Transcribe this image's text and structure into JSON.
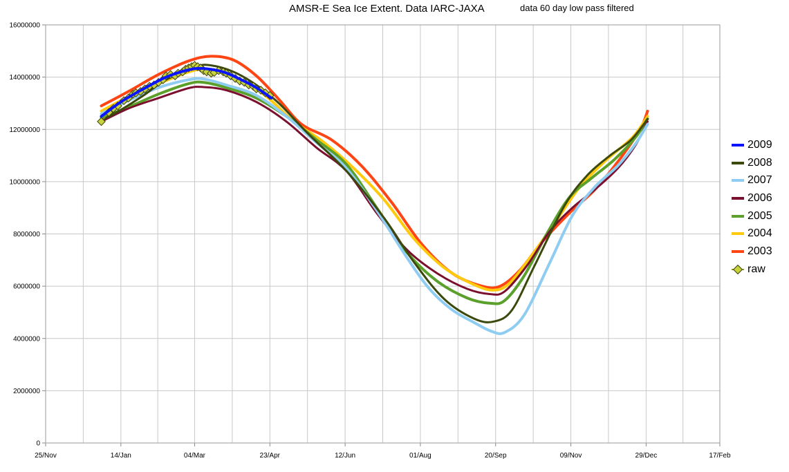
{
  "title": "AMSR-E Sea Ice Extent. Data IARC-JAXA",
  "subtitle": "data 60 day low pass filtered",
  "chart_data": {
    "type": "line",
    "title": "AMSR-E Sea Ice Extent. Data IARC-JAXA",
    "subtitle": "data 60 day low pass filtered",
    "xlabel": "",
    "ylabel": "",
    "x_range_days": [
      0,
      448
    ],
    "ylim": [
      0,
      16000000
    ],
    "grid": true,
    "legend_position": "right",
    "x_ticks": [
      {
        "day": 0,
        "label": "25/Nov"
      },
      {
        "day": 50,
        "label": "14/Jan"
      },
      {
        "day": 99,
        "label": "04/Mar"
      },
      {
        "day": 149,
        "label": "23/Apr"
      },
      {
        "day": 199,
        "label": "12/Jun"
      },
      {
        "day": 249,
        "label": "01/Aug"
      },
      {
        "day": 299,
        "label": "20/Sep"
      },
      {
        "day": 349,
        "label": "09/Nov"
      },
      {
        "day": 399,
        "label": "29/Dec"
      },
      {
        "day": 448,
        "label": "17/Feb"
      }
    ],
    "y_ticks": [
      "0",
      "2000000",
      "4000000",
      "6000000",
      "8000000",
      "10000000",
      "12000000",
      "14000000",
      "16000000"
    ],
    "y_tick_values": [
      0,
      2000000,
      4000000,
      6000000,
      8000000,
      10000000,
      12000000,
      14000000,
      16000000
    ],
    "series": [
      {
        "name": "2009",
        "color": "#0a14ff",
        "width": 4,
        "points": [
          [
            37,
            12500000
          ],
          [
            50,
            13050000
          ],
          [
            65,
            13550000
          ],
          [
            80,
            14000000
          ],
          [
            95,
            14280000
          ],
          [
            105,
            14330000
          ],
          [
            118,
            14200000
          ],
          [
            130,
            13900000
          ],
          [
            140,
            13600000
          ],
          [
            150,
            13200000
          ]
        ]
      },
      {
        "name": "2008",
        "color": "#3b4a0c",
        "width": 3,
        "points": [
          [
            37,
            12350000
          ],
          [
            50,
            12750000
          ],
          [
            65,
            13300000
          ],
          [
            80,
            13900000
          ],
          [
            100,
            14400000
          ],
          [
            110,
            14450000
          ],
          [
            125,
            14200000
          ],
          [
            140,
            13700000
          ],
          [
            155,
            13000000
          ],
          [
            175,
            11800000
          ],
          [
            200,
            10400000
          ],
          [
            225,
            8600000
          ],
          [
            245,
            6900000
          ],
          [
            265,
            5500000
          ],
          [
            285,
            4750000
          ],
          [
            298,
            4650000
          ],
          [
            310,
            5100000
          ],
          [
            325,
            6800000
          ],
          [
            345,
            9100000
          ],
          [
            360,
            10250000
          ],
          [
            375,
            11000000
          ],
          [
            389,
            11600000
          ],
          [
            400,
            12400000
          ]
        ]
      },
      {
        "name": "2007",
        "color": "#8fccf2",
        "width": 4,
        "points": [
          [
            37,
            12600000
          ],
          [
            55,
            13100000
          ],
          [
            75,
            13600000
          ],
          [
            95,
            13900000
          ],
          [
            105,
            13930000
          ],
          [
            120,
            13700000
          ],
          [
            140,
            13300000
          ],
          [
            160,
            12500000
          ],
          [
            180,
            11500000
          ],
          [
            200,
            10500000
          ],
          [
            220,
            8900000
          ],
          [
            240,
            7100000
          ],
          [
            255,
            5900000
          ],
          [
            270,
            5100000
          ],
          [
            285,
            4600000
          ],
          [
            296,
            4280000
          ],
          [
            305,
            4230000
          ],
          [
            318,
            4900000
          ],
          [
            335,
            6900000
          ],
          [
            350,
            8700000
          ],
          [
            365,
            9800000
          ],
          [
            380,
            10600000
          ],
          [
            392,
            11450000
          ],
          [
            400,
            12200000
          ]
        ]
      },
      {
        "name": "2006",
        "color": "#7a0f2e",
        "width": 3,
        "points": [
          [
            37,
            12300000
          ],
          [
            55,
            12800000
          ],
          [
            75,
            13200000
          ],
          [
            95,
            13580000
          ],
          [
            105,
            13620000
          ],
          [
            120,
            13500000
          ],
          [
            140,
            13050000
          ],
          [
            160,
            12300000
          ],
          [
            180,
            11300000
          ],
          [
            200,
            10400000
          ],
          [
            220,
            8800000
          ],
          [
            240,
            7400000
          ],
          [
            260,
            6500000
          ],
          [
            280,
            5900000
          ],
          [
            295,
            5700000
          ],
          [
            305,
            5800000
          ],
          [
            320,
            6800000
          ],
          [
            335,
            8100000
          ],
          [
            350,
            9000000
          ],
          [
            365,
            9700000
          ],
          [
            380,
            10500000
          ],
          [
            392,
            11400000
          ],
          [
            400,
            12300000
          ]
        ]
      },
      {
        "name": "2005",
        "color": "#5aa02a",
        "width": 4,
        "points": [
          [
            37,
            12450000
          ],
          [
            55,
            12850000
          ],
          [
            75,
            13350000
          ],
          [
            95,
            13750000
          ],
          [
            105,
            13800000
          ],
          [
            120,
            13600000
          ],
          [
            140,
            13200000
          ],
          [
            160,
            12500000
          ],
          [
            180,
            11600000
          ],
          [
            200,
            10650000
          ],
          [
            220,
            9000000
          ],
          [
            240,
            7300000
          ],
          [
            260,
            6200000
          ],
          [
            280,
            5550000
          ],
          [
            295,
            5350000
          ],
          [
            305,
            5450000
          ],
          [
            318,
            6400000
          ],
          [
            333,
            8000000
          ],
          [
            348,
            9400000
          ],
          [
            362,
            10100000
          ],
          [
            378,
            10850000
          ],
          [
            392,
            11700000
          ],
          [
            400,
            12400000
          ]
        ]
      },
      {
        "name": "2004",
        "color": "#ffc90e",
        "width": 4,
        "points": [
          [
            37,
            12700000
          ],
          [
            55,
            13250000
          ],
          [
            75,
            13750000
          ],
          [
            95,
            14200000
          ],
          [
            105,
            14300000
          ],
          [
            118,
            14180000
          ],
          [
            135,
            13750000
          ],
          [
            150,
            13100000
          ],
          [
            165,
            12300000
          ],
          [
            185,
            11500000
          ],
          [
            205,
            10500000
          ],
          [
            225,
            9300000
          ],
          [
            245,
            7800000
          ],
          [
            265,
            6700000
          ],
          [
            285,
            6050000
          ],
          [
            298,
            5850000
          ],
          [
            308,
            6100000
          ],
          [
            322,
            7100000
          ],
          [
            338,
            8400000
          ],
          [
            355,
            9800000
          ],
          [
            372,
            10800000
          ],
          [
            390,
            11700000
          ],
          [
            400,
            12500000
          ]
        ]
      },
      {
        "name": "2003",
        "color": "#ff4513",
        "width": 4,
        "points": [
          [
            37,
            12900000
          ],
          [
            55,
            13450000
          ],
          [
            75,
            14100000
          ],
          [
            95,
            14620000
          ],
          [
            110,
            14800000
          ],
          [
            125,
            14650000
          ],
          [
            140,
            14050000
          ],
          [
            155,
            13150000
          ],
          [
            170,
            12200000
          ],
          [
            190,
            11600000
          ],
          [
            210,
            10600000
          ],
          [
            230,
            9200000
          ],
          [
            250,
            7600000
          ],
          [
            270,
            6500000
          ],
          [
            290,
            6000000
          ],
          [
            302,
            6000000
          ],
          [
            315,
            6600000
          ],
          [
            330,
            7700000
          ],
          [
            348,
            8800000
          ],
          [
            365,
            9700000
          ],
          [
            382,
            10900000
          ],
          [
            395,
            12000000
          ],
          [
            400,
            12700000
          ]
        ]
      }
    ],
    "raw": {
      "name": "raw",
      "color": "#c8d23c",
      "points": [
        [
          37,
          12300000
        ],
        [
          42,
          12650000
        ],
        [
          45,
          12800000
        ],
        [
          48,
          12900000
        ],
        [
          52,
          13100000
        ],
        [
          55,
          13200000
        ],
        [
          58,
          13350000
        ],
        [
          60,
          13400000
        ],
        [
          63,
          13450000
        ],
        [
          66,
          13550000
        ],
        [
          69,
          13650000
        ],
        [
          72,
          13700000
        ],
        [
          75,
          13800000
        ],
        [
          78,
          13900000
        ],
        [
          80,
          14050000
        ],
        [
          83,
          14100000
        ],
        [
          86,
          14050000
        ],
        [
          88,
          14150000
        ],
        [
          91,
          14200000
        ],
        [
          93,
          14300000
        ],
        [
          95,
          14350000
        ],
        [
          97,
          14400000
        ],
        [
          99,
          14450000
        ],
        [
          101,
          14400000
        ],
        [
          103,
          14350000
        ],
        [
          105,
          14250000
        ],
        [
          107,
          14200000
        ],
        [
          110,
          14150000
        ],
        [
          112,
          14180000
        ],
        [
          115,
          14250000
        ],
        [
          118,
          14200000
        ],
        [
          120,
          14150000
        ],
        [
          123,
          14050000
        ],
        [
          126,
          13950000
        ],
        [
          129,
          13850000
        ],
        [
          132,
          13800000
        ],
        [
          135,
          13700000
        ],
        [
          138,
          13650000
        ],
        [
          140,
          13550000
        ],
        [
          143,
          13500000
        ],
        [
          146,
          13400000
        ],
        [
          149,
          13300000
        ]
      ]
    }
  }
}
